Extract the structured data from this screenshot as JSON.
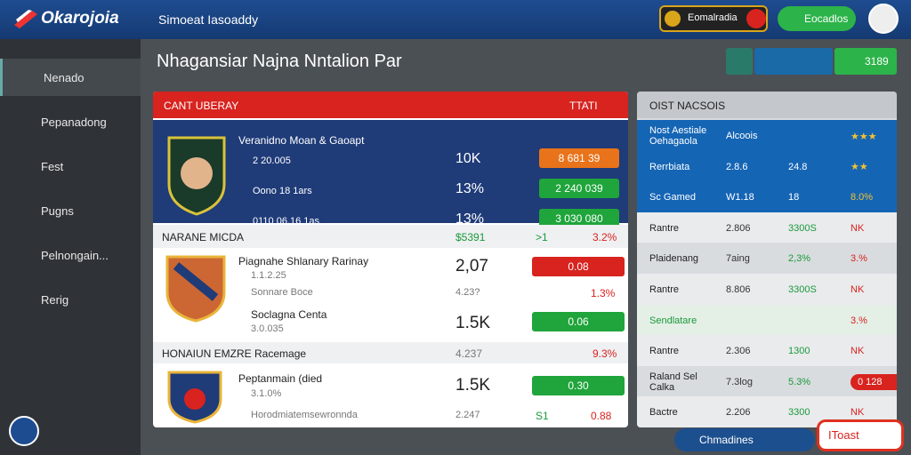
{
  "header": {
    "logo": "Okarojoia",
    "subtitle": "Simoeat Iasoaddy",
    "badge": "Eomalradia",
    "button": "Eocadlos"
  },
  "sidebar": {
    "items": [
      "Nenado",
      "Pepanadong",
      "Fest",
      "Pugns",
      "Pelnongain...",
      "Rerig"
    ]
  },
  "page_title": "Nhagansiar Najna Nntalion Par",
  "toolbar": {
    "score": "3189"
  },
  "main": {
    "header": {
      "left": "CANT UBERAY",
      "right": "TTATI"
    },
    "featured": {
      "name": "Veranidno Moan & Gaoapt",
      "rows": [
        {
          "label": "2 20.005",
          "value": "10K",
          "badge": "8 681 39"
        },
        {
          "label": "Oono 18 1ars",
          "value": "13%",
          "badge": "2 240 039"
        },
        {
          "label": "0110 06.16 1as",
          "value": "13%",
          "badge": "3 030 080"
        }
      ]
    },
    "section1": {
      "title": "NARANE MICDA",
      "c1": "$5391",
      "c2": ">1",
      "c3": "3.2%"
    },
    "item1": {
      "name": "Piagnahe Shlanary Rarinay",
      "sub": "1.1.2.25",
      "sub2": "Sonnare Boce",
      "value": "2,07",
      "value2": "4.23?",
      "badge": "0.08",
      "pct": "1.3%"
    },
    "item2": {
      "name": "Soclagna Centa",
      "sub": "3.0.035",
      "value": "1.5K",
      "badge": "0.06"
    },
    "section2": {
      "title": "HONAIUN EMZRE Racemage",
      "c1": "4.237",
      "c3": "9.3%"
    },
    "item3": {
      "name": "Peptanmain (died",
      "sub": "3.1.0%",
      "sub2": "Horodmiatemsewronnda",
      "value": "1.5K",
      "value2": "2.247",
      "badge": "0.30",
      "c2": "S1",
      "pct": "0.88"
    }
  },
  "side_panel": {
    "title": "OIST NACSOIS",
    "rows": [
      [
        "Nost Aestiale Oehagaola",
        "Alcoois",
        "",
        "★★★"
      ],
      [
        "Rerrbiata",
        "2.8.6",
        "24.8",
        "★★"
      ],
      [
        "Sc Gamed",
        "W1.18",
        "18",
        "8.0%"
      ],
      [
        "Rantre",
        "2.806",
        "3300S",
        "NK"
      ],
      [
        "Plaidenang",
        "7aing",
        "2,3%",
        "3.%"
      ],
      [
        "Rantre",
        "8.806",
        "3300S",
        "NK"
      ],
      [
        "Sendlatare",
        "",
        "",
        "3.%"
      ],
      [
        "Rantre",
        "2.306",
        "1300",
        "NK"
      ],
      [
        "Raland Sel Calka",
        "7.3log",
        "5.3%",
        "0 128"
      ],
      [
        "Bactre",
        "2.206",
        "3300",
        "NK"
      ]
    ]
  },
  "footer": {
    "chip": "Chmadines",
    "toast": "IToast"
  }
}
